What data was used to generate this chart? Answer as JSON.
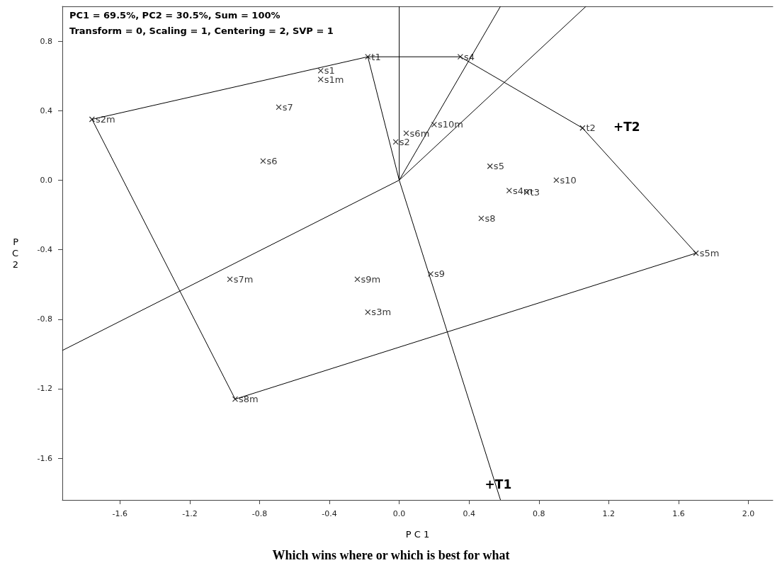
{
  "chart_data": {
    "type": "scatter",
    "title": "Which wins where or which is best for what",
    "xlabel": "P C 1",
    "ylabel": "P C 2",
    "annotations": [
      "PC1 = 69.5%, PC2 = 30.5%, Sum = 100%",
      "Transform = 0, Scaling = 1, Centering = 2, SVP = 1",
      "+T2"
    ],
    "xlim": [
      -1.93,
      2.14
    ],
    "ylim": [
      -1.84,
      1.0
    ],
    "xticks": [
      -1.6,
      -1.2,
      -0.8,
      -0.4,
      {
        "value": 0,
        "label": "0.0"
      },
      0.4,
      0.8,
      1.2,
      1.6,
      {
        "value": 2,
        "label": "2.0"
      }
    ],
    "yticks": [
      -1.6,
      -1.2,
      -0.8,
      -0.4,
      {
        "value": 0,
        "label": "0.0"
      },
      0.4,
      0.8
    ],
    "grid": false,
    "legend": false,
    "line_style": "solid",
    "series": [
      {
        "marker": "cross",
        "color": "#000000",
        "x": [
          -0.18,
          0.35,
          1.05,
          1.7,
          -0.94,
          -1.76,
          -0.45,
          -0.45,
          -0.69,
          -0.78,
          -0.02,
          0.04,
          0.2,
          0.52,
          0.63,
          0.73,
          0.9,
          0.47,
          0.18,
          -0.97,
          -0.24,
          -0.18
        ],
        "values": [
          0.71,
          0.71,
          0.3,
          -0.42,
          -1.26,
          0.35,
          0.63,
          0.58,
          0.42,
          0.11,
          0.22,
          0.27,
          0.32,
          0.08,
          -0.06,
          -0.07,
          0.0,
          -0.22,
          -0.54,
          -0.57,
          -0.57,
          -0.76
        ],
        "value_labels": [
          "t1",
          "s4",
          "t2",
          "s5m",
          "s8m",
          "s2m",
          "s1",
          "s1m",
          "s7",
          "s6",
          "s2",
          "s6m",
          "s10m",
          "s5",
          "s4m",
          "t3",
          "s10",
          "s8",
          "s9",
          "s7m",
          "s9m",
          "s3m"
        ]
      },
      {
        "type": "line",
        "color": "#000000",
        "x": [
          -1.76,
          -0.18,
          0.35,
          1.05,
          1.7
        ],
        "values": [
          0.35,
          0.71,
          0.71,
          0.3,
          -0.42
        ]
      },
      {
        "type": "line",
        "color": "#000000",
        "x": [
          -1.76,
          -0.94,
          1.7
        ],
        "values": [
          0.35,
          -1.26,
          -0.42
        ]
      },
      {
        "type": "line",
        "color": "#000000",
        "x": [
          0,
          0,
          0.58
        ],
        "values": [
          1.0,
          0,
          1.0
        ]
      },
      {
        "type": "line",
        "color": "#000000",
        "x": [
          1.07,
          0,
          -1.93
        ],
        "values": [
          1.0,
          0,
          -0.98
        ]
      },
      {
        "type": "line",
        "name": "+T1",
        "color": "#000000",
        "x": [
          -0.18,
          0,
          0.58
        ],
        "values": [
          0.71,
          0,
          -1.84
        ]
      }
    ]
  }
}
